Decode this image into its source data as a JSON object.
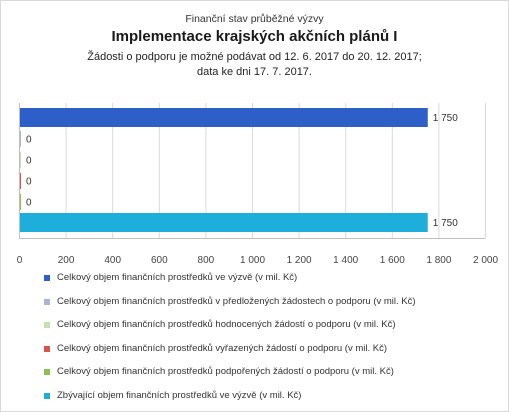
{
  "header": {
    "supertitle": "Finanční stav průběžné výzvy",
    "title": "Implementace krajských akčních plánů I",
    "subtitle_line1": "Žádosti o podporu je možné podávat od 12. 6. 2017 do 20. 12. 2017;",
    "subtitle_line2": "data ke dni 17. 7. 2017."
  },
  "chart_data": {
    "type": "bar",
    "orientation": "horizontal",
    "xlim": [
      0,
      2000
    ],
    "x_ticks": [
      "0",
      "200",
      "400",
      "600",
      "800",
      "1 000",
      "1 200",
      "1 400",
      "1 600",
      "1 800",
      "2 000"
    ],
    "grid": true,
    "legend_position": "bottom",
    "series": [
      {
        "name": "Celkový objem finančních prostředků ve výzvě (v mil. Kč)",
        "value": 1750,
        "label": "1 750",
        "color": "#2e5fc9"
      },
      {
        "name": "Celkový objem finančních prostředků v předložených žádostech o podporu (v mil. Kč)",
        "value": 0,
        "label": "0",
        "color": "#aab4d6"
      },
      {
        "name": "Celkový objem finančních prostředků hodnocených žádostí o podporu (v mil. Kč)",
        "value": 0,
        "label": "0",
        "color": "#c6dfae"
      },
      {
        "name": "Celkový objem finančních prostředků vyřazených žádostí o podporu (v mil. Kč)",
        "value": 0,
        "label": "0",
        "color": "#d9534f"
      },
      {
        "name": "Celkový objem finančních prostředků podpořených žádostí o podporu (v mil. Kč)",
        "value": 0,
        "label": "0",
        "color": "#8cc152"
      },
      {
        "name": "Zbývající objem finančních prostředků ve výzvě (v mil. Kč)",
        "value": 1750,
        "label": "1 750",
        "color": "#1eaedb"
      }
    ]
  }
}
